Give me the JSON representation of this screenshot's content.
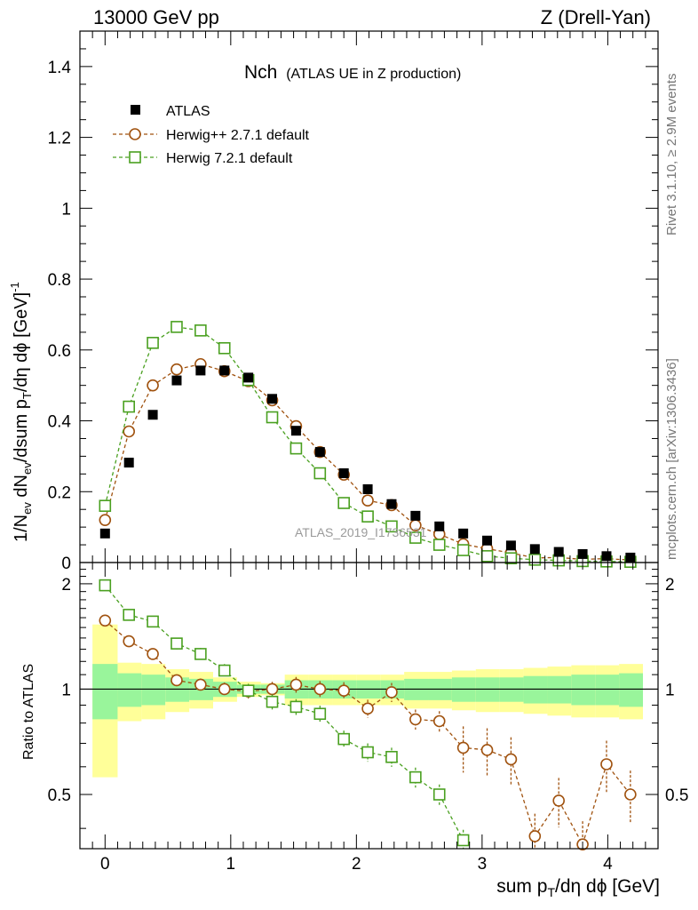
{
  "header": {
    "left": "13000 GeV pp",
    "right": "Z (Drell-Yan)"
  },
  "side_labels": {
    "rivet": "Rivet 3.1.10, ≥ 2.9M events",
    "mcplots": "mcplots.cern.ch [arXiv:1306.3436]"
  },
  "chart_data": [
    {
      "type": "scatter",
      "panel": "main",
      "title": "Nch",
      "subtitle": "(ATLAS UE in Z production)",
      "watermark": "ATLAS_2019_I1736531",
      "ylabel": "1/N_ev dN_ev/dsum p_T/dη dϕ [GeV]^-1",
      "xlim": [
        -0.2,
        4.4
      ],
      "ylim": [
        0,
        1.5
      ],
      "yticks": [
        0,
        0.2,
        0.4,
        0.6,
        0.8,
        1,
        1.2,
        1.4
      ],
      "ytick_labels": [
        "0",
        "0.2",
        "0.4",
        "0.6",
        "0.8",
        "1",
        "1.2",
        "1.4"
      ],
      "x": [
        0.0,
        0.19,
        0.38,
        0.57,
        0.76,
        0.95,
        1.14,
        1.33,
        1.52,
        1.71,
        1.9,
        2.09,
        2.28,
        2.47,
        2.66,
        2.85,
        3.04,
        3.23,
        3.42,
        3.61,
        3.8,
        3.99,
        4.18
      ],
      "series": [
        {
          "name": "ATLAS",
          "marker": "filled-square",
          "color": "#000000",
          "values": [
            0.082,
            0.282,
            0.417,
            0.514,
            0.542,
            0.542,
            0.522,
            0.462,
            0.372,
            0.312,
            0.252,
            0.207,
            0.165,
            0.132,
            0.102,
            0.082,
            0.062,
            0.048,
            0.038,
            0.03,
            0.024,
            0.018,
            0.014
          ]
        },
        {
          "name": "Herwig++ 2.7.1 default",
          "marker": "open-circle",
          "color": "#a0520f",
          "values": [
            0.12,
            0.37,
            0.5,
            0.545,
            0.56,
            0.54,
            0.512,
            0.458,
            0.385,
            0.312,
            0.248,
            0.175,
            0.162,
            0.105,
            0.08,
            0.052,
            0.039,
            0.027,
            0.013,
            0.014,
            0.009,
            0.011,
            0.007
          ]
        },
        {
          "name": "Herwig 7.2.1 default",
          "marker": "open-square",
          "color": "#4aa020",
          "values": [
            0.16,
            0.44,
            0.62,
            0.665,
            0.655,
            0.605,
            0.515,
            0.41,
            0.322,
            0.252,
            0.168,
            0.13,
            0.102,
            0.07,
            0.05,
            0.035,
            0.018,
            0.012,
            0.008,
            0.006,
            0.004,
            0.003,
            0.002
          ]
        }
      ]
    },
    {
      "type": "scatter",
      "panel": "ratio",
      "ylabel": "Ratio to ATLAS",
      "xlabel": "sum p_T/dη dϕ [GeV]",
      "xlim": [
        -0.2,
        4.4
      ],
      "ylim": [
        0.35,
        2.3
      ],
      "yticks": [
        0.5,
        1,
        2
      ],
      "ytick_labels": [
        "0.5",
        "1",
        "2"
      ],
      "xticks": [
        0,
        1,
        2,
        3,
        4
      ],
      "xtick_labels": [
        "0",
        "1",
        "2",
        "3",
        "4"
      ],
      "x": [
        0.0,
        0.19,
        0.38,
        0.57,
        0.76,
        0.95,
        1.14,
        1.33,
        1.52,
        1.71,
        1.9,
        2.09,
        2.28,
        2.47,
        2.66,
        2.85,
        3.04,
        3.23,
        3.42,
        3.61,
        3.8,
        3.99,
        4.18
      ],
      "bin_edges": [
        -0.1,
        0.1,
        0.29,
        0.48,
        0.67,
        0.86,
        1.05,
        1.24,
        1.43,
        1.62,
        1.81,
        2.0,
        2.19,
        2.38,
        2.57,
        2.76,
        2.95,
        3.14,
        3.33,
        3.52,
        3.71,
        3.9,
        4.09,
        4.28
      ],
      "band_yellow": {
        "low": [
          0.56,
          0.81,
          0.82,
          0.86,
          0.88,
          0.92,
          0.95,
          0.96,
          0.9,
          0.9,
          0.9,
          0.9,
          0.9,
          0.88,
          0.88,
          0.87,
          0.86,
          0.86,
          0.85,
          0.84,
          0.83,
          0.83,
          0.82
        ],
        "high": [
          1.53,
          1.19,
          1.18,
          1.14,
          1.12,
          1.08,
          1.05,
          1.04,
          1.1,
          1.1,
          1.1,
          1.1,
          1.1,
          1.12,
          1.12,
          1.13,
          1.14,
          1.14,
          1.15,
          1.16,
          1.17,
          1.17,
          1.18
        ]
      },
      "band_green": {
        "low": [
          0.82,
          0.89,
          0.9,
          0.92,
          0.93,
          0.95,
          0.97,
          0.97,
          0.94,
          0.94,
          0.94,
          0.94,
          0.94,
          0.93,
          0.93,
          0.92,
          0.92,
          0.92,
          0.91,
          0.91,
          0.9,
          0.9,
          0.89
        ],
        "high": [
          1.18,
          1.11,
          1.1,
          1.08,
          1.07,
          1.05,
          1.03,
          1.03,
          1.06,
          1.06,
          1.06,
          1.06,
          1.06,
          1.07,
          1.07,
          1.08,
          1.08,
          1.08,
          1.09,
          1.09,
          1.1,
          1.1,
          1.11
        ]
      },
      "series": [
        {
          "name": "Herwig++ 2.7.1 default",
          "color": "#a0520f",
          "values": [
            1.57,
            1.37,
            1.26,
            1.06,
            1.03,
            1.0,
            0.985,
            1.0,
            1.03,
            1.0,
            0.99,
            0.88,
            0.98,
            0.82,
            0.81,
            0.68,
            0.67,
            0.63,
            0.38,
            0.48,
            0.36,
            0.61,
            0.5
          ]
        },
        {
          "name": "Herwig 7.2.1 default",
          "color": "#4aa020",
          "values": [
            1.98,
            1.63,
            1.56,
            1.35,
            1.26,
            1.13,
            0.99,
            0.92,
            0.89,
            0.85,
            0.72,
            0.66,
            0.64,
            0.56,
            0.5,
            0.37
          ]
        }
      ]
    }
  ]
}
